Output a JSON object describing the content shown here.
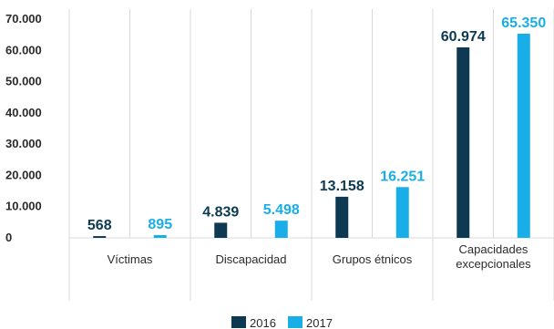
{
  "chart_data": {
    "type": "bar",
    "categories": [
      "Víctimas",
      "Discapacidad",
      "Grupos étnicos",
      "Capacidades excepcionales"
    ],
    "series": [
      {
        "name": "2016",
        "values": [
          568,
          4839,
          13158,
          60974
        ],
        "labels": [
          "568",
          "4.839",
          "13.158",
          "60.974"
        ]
      },
      {
        "name": "2017",
        "values": [
          895,
          5498,
          16251,
          65350
        ],
        "labels": [
          "895",
          "5.498",
          "16.251",
          "65.350"
        ]
      }
    ],
    "ylim": [
      0,
      70000
    ],
    "yticks": [
      "0",
      "10.000",
      "20.000",
      "30.000",
      "40.000",
      "50.000",
      "60.000",
      "70.000"
    ],
    "ytick_values": [
      0,
      10000,
      20000,
      30000,
      40000,
      50000,
      60000,
      70000
    ],
    "colors": [
      "#0d3a52",
      "#1aaee8"
    ],
    "gridline_color": "#d9d9d9",
    "legend_position": "bottom",
    "xlabel": "",
    "ylabel": "",
    "title": ""
  }
}
